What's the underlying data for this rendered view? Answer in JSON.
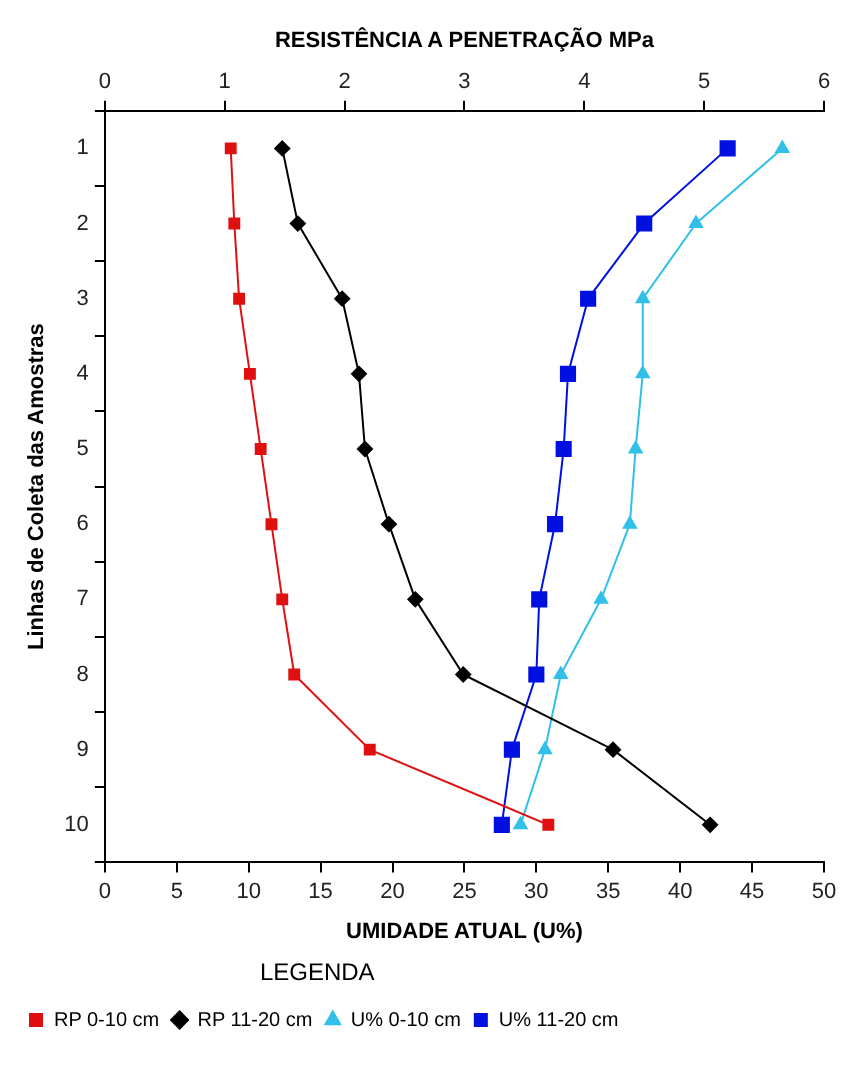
{
  "chart_data": {
    "type": "line",
    "orientation": "horizontal",
    "xlabel": "UMIDADE ATUAL (U%)",
    "x2label": "RESISTÊNCIA A PENETRAÇÃO MPa",
    "ylabel": "Linhas de Coleta das Amostras",
    "categories": [
      "1",
      "2",
      "3",
      "4",
      "5",
      "6",
      "7",
      "8",
      "9",
      "10"
    ],
    "xlim": [
      0,
      50
    ],
    "xticks": [
      0,
      5,
      10,
      15,
      20,
      25,
      30,
      35,
      40,
      45,
      50
    ],
    "x2lim": [
      0,
      6
    ],
    "x2ticks": [
      0,
      1,
      2,
      3,
      4,
      5,
      6
    ],
    "grid": false,
    "legend": "bottom left",
    "legend_title": "LEGENDA",
    "series": [
      {
        "name": "RP 0-10 cm",
        "color": "#e01010",
        "axis": "x2",
        "marker": "square",
        "values": [
          1.05,
          1.08,
          1.12,
          1.21,
          1.3,
          1.39,
          1.48,
          1.58,
          2.21,
          3.7
        ]
      },
      {
        "name": "RP 11-20 cm",
        "color": "#000000",
        "axis": "x2",
        "marker": "diamond",
        "values": [
          1.48,
          1.61,
          1.98,
          2.12,
          2.17,
          2.37,
          2.59,
          2.99,
          4.24,
          5.05
        ]
      },
      {
        "name": "U% 0-10 cm",
        "color": "#30c0e8",
        "marker": "triangle",
        "values": [
          47.1,
          41.1,
          37.4,
          37.4,
          36.9,
          36.5,
          34.5,
          31.7,
          30.6,
          28.9
        ]
      },
      {
        "name": "U% 11-20 cm",
        "color": "#0010e0",
        "marker": "square",
        "values": [
          43.3,
          37.5,
          33.6,
          32.2,
          31.9,
          31.3,
          30.2,
          30.0,
          28.3,
          27.6
        ]
      }
    ]
  }
}
